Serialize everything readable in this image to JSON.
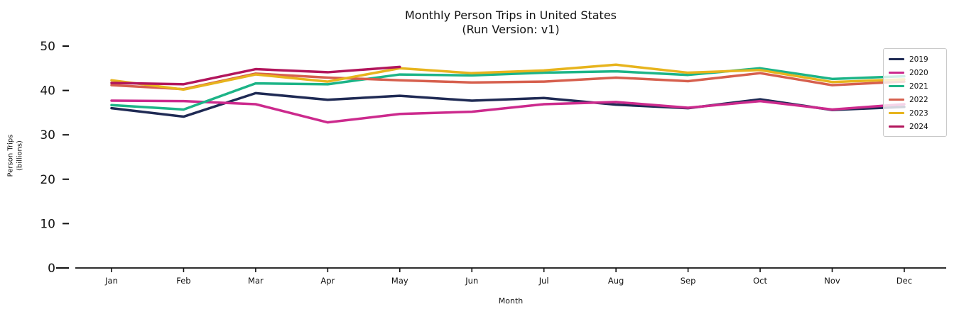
{
  "title": {
    "line1": "Monthly Person Trips in United States",
    "line2": "(Run Version: v1)"
  },
  "axes": {
    "x_label": "Month",
    "y_label_line1": "Person Trips",
    "y_label_line2": "(billions)",
    "x_tick_labels": [
      "Jan",
      "Feb",
      "Mar",
      "Apr",
      "May",
      "Jun",
      "Jul",
      "Aug",
      "Sep",
      "Oct",
      "Nov",
      "Dec"
    ],
    "y_tick_labels": [
      "0",
      "10",
      "20",
      "30",
      "40",
      "50"
    ],
    "y_tick_values": [
      0,
      10,
      20,
      30,
      40,
      50
    ]
  },
  "legend": {
    "position": "upper right",
    "entries": [
      "2019",
      "2020",
      "2021",
      "2022",
      "2023",
      "2024"
    ]
  },
  "chart_data": {
    "type": "line",
    "title": "Monthly Person Trips in United States (Run Version: v1)",
    "xlabel": "Month",
    "ylabel": "Person Trips (billions)",
    "ylim": [
      0,
      50
    ],
    "grid": false,
    "legend_position": "upper right",
    "categories": [
      "Jan",
      "Feb",
      "Mar",
      "Apr",
      "May",
      "Jun",
      "Jul",
      "Aug",
      "Sep",
      "Oct",
      "Nov",
      "Dec"
    ],
    "series": [
      {
        "name": "2019",
        "color": "#1f2a54",
        "values": [
          36.0,
          34.1,
          39.4,
          37.9,
          38.8,
          37.7,
          38.3,
          36.8,
          36.0,
          38.0,
          35.6,
          36.3
        ]
      },
      {
        "name": "2020",
        "color": "#cc2a8d",
        "values": [
          37.7,
          37.6,
          36.9,
          32.8,
          34.7,
          35.2,
          36.9,
          37.4,
          36.1,
          37.6,
          35.7,
          36.9
        ]
      },
      {
        "name": "2021",
        "color": "#1cb487",
        "values": [
          36.7,
          35.7,
          41.6,
          41.4,
          43.6,
          43.4,
          44.0,
          44.3,
          43.5,
          45.0,
          42.6,
          43.2
        ]
      },
      {
        "name": "2022",
        "color": "#d65f4d",
        "values": [
          41.2,
          40.3,
          43.8,
          42.9,
          42.3,
          41.8,
          42.0,
          42.9,
          42.1,
          43.9,
          41.2,
          42.0
        ]
      },
      {
        "name": "2023",
        "color": "#e7b41d",
        "values": [
          42.3,
          40.2,
          43.6,
          42.0,
          45.0,
          43.9,
          44.5,
          45.8,
          44.0,
          44.6,
          41.9,
          42.5
        ]
      },
      {
        "name": "2024",
        "color": "#b2155c",
        "values": [
          41.7,
          41.4,
          44.8,
          44.1,
          45.3
        ]
      }
    ]
  }
}
